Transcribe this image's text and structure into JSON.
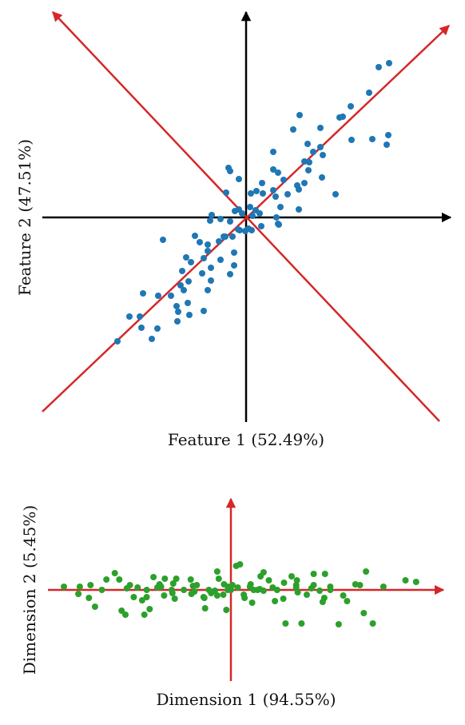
{
  "chart_data": [
    {
      "type": "scatter",
      "title": "",
      "xlabel": "Feature 1 (52.49%)",
      "ylabel": "Feature 2 (47.51%)",
      "grid": false,
      "legend": "none",
      "point_color": "#1f77b4",
      "axis_color": "#000000",
      "component_axis_color": "#d62728",
      "component_axes": [
        "diagonal-ascending",
        "diagonal-descending"
      ],
      "xlim": [
        -2.6,
        2.6
      ],
      "ylim": [
        -2.6,
        2.6
      ],
      "x": [
        1.79,
        1.66,
        1.54,
        1.31,
        1.21,
        1.17,
        0.67,
        0.93,
        0.96,
        0.59,
        0.93,
        1.78,
        1.58,
        0.77,
        1.32,
        0.84,
        0.34,
        0.73,
        0.79,
        1.76,
        0.78,
        0.73,
        0.34,
        0.4,
        0.95,
        0.47,
        1.12,
        -0.22,
        -0.2,
        -0.09,
        0.2,
        0.64,
        0.66,
        0.34,
        0.21,
        0.13,
        0.52,
        0.37,
        0.06,
        0.43,
        0.66,
        0.38,
        0.05,
        0.17,
        -0.25,
        0.12,
        -0.43,
        -0.09,
        -0.05,
        -0.14,
        0.08,
        -0.45,
        -0.32,
        -0.2,
        0.4,
        0.41,
        0.19,
        -0.01,
        0.03,
        0.07,
        -0.08,
        -0.17,
        -0.1,
        -0.28,
        -0.34,
        -0.64,
        -0.48,
        -0.26,
        -0.15,
        -0.58,
        -0.48,
        -0.53,
        -0.32,
        -0.69,
        -0.75,
        -1.04,
        -0.44,
        -0.15,
        -0.55,
        -0.8,
        -0.2,
        -0.72,
        -0.82,
        -0.78,
        -1.29,
        -0.48,
        -0.44,
        -0.94,
        -1.1,
        -0.85,
        -0.73,
        -0.87,
        -0.53,
        -0.86,
        -0.71,
        -1.33,
        -1.11,
        -1.46,
        -1.31,
        -1.18,
        -1.61
      ],
      "y": [
        1.93,
        1.88,
        1.56,
        1.39,
        1.26,
        1.25,
        1.28,
        1.12,
        0.78,
        1.1,
        0.88,
        1.03,
        0.98,
        0.92,
        0.97,
        0.82,
        0.82,
        0.7,
        0.69,
        0.91,
        0.59,
        0.43,
        0.6,
        0.56,
        0.5,
        0.47,
        0.29,
        0.62,
        0.58,
        0.48,
        0.43,
        0.4,
        0.35,
        0.34,
        0.3,
        0.33,
        0.29,
        0.26,
        0.3,
        0.13,
        0.1,
        0.0,
        0.13,
        0.05,
        0.31,
        0.09,
        0.03,
        0.1,
        0.05,
        0.08,
        0.02,
        -0.04,
        -0.02,
        -0.05,
        -0.08,
        -0.09,
        -0.11,
        -0.17,
        -0.14,
        -0.16,
        -0.16,
        -0.24,
        -0.15,
        -0.24,
        -0.3,
        -0.23,
        -0.34,
        -0.24,
        -0.44,
        -0.31,
        -0.42,
        -0.51,
        -0.53,
        -0.56,
        -0.5,
        -0.28,
        -0.63,
        -0.6,
        -0.7,
        -0.67,
        -0.71,
        -0.8,
        -0.85,
        -0.91,
        -0.95,
        -0.91,
        -0.79,
        -0.98,
        -0.98,
        -1.18,
        -1.07,
        -1.11,
        -1.17,
        -1.3,
        -1.22,
        -1.24,
        -1.39,
        -1.24,
        -1.38,
        -1.52,
        -1.55
      ]
    },
    {
      "type": "scatter",
      "title": "",
      "xlabel": "Dimension 1 (94.55%)",
      "ylabel": "Dimension 2 (5.45%)",
      "grid": false,
      "legend": "none",
      "point_color": "#2ca02c",
      "axis_color": "#d62728",
      "xlim": [
        -2.6,
        2.6
      ],
      "ylim": [
        -0.75,
        0.75
      ],
      "x": [
        -2.2,
        -1.99,
        -1.87,
        -1.79,
        -1.53,
        -1.37,
        -1.44,
        -1.39,
        -1.33,
        -1.28,
        -1.17,
        -1.14,
        -1.11,
        -1.02,
        -1.07,
        -0.97,
        -0.87,
        -0.77,
        -0.76,
        -0.72,
        -0.74,
        -0.5,
        -0.52,
        -0.45,
        -0.35,
        -0.29,
        -0.26,
        -0.16,
        -0.18,
        -0.09,
        -0.06,
        -0.04,
        0.02,
        0.07,
        0.12,
        0.17,
        0.25,
        0.3,
        0.35,
        0.39,
        0.43,
        0.5,
        0.58,
        0.61,
        0.7,
        0.72,
        0.8,
        0.86,
        0.93,
        1.0,
        1.06,
        1.09,
        1.17,
        1.24,
        1.31,
        1.42,
        1.53,
        1.64,
        1.7,
        1.75,
        1.87,
        2.01,
        2.3,
        2.44,
        -2.01,
        -1.85,
        -1.64,
        -1.47,
        -1.23,
        -1.11,
        -0.94,
        -0.88,
        -0.53,
        -0.36,
        -0.21,
        0.0,
        0.09,
        0.18,
        0.26,
        0.38,
        0.55,
        0.69,
        0.86,
        1.09,
        1.21,
        1.31,
        1.48,
        1.78,
        -0.34,
        -0.18,
        0.28,
        0.87,
        -0.92,
        -0.78,
        -0.48,
        -0.04,
        0.43,
        0.88,
        1.23,
        -1.7,
        -0.62,
        -0.1
      ],
      "y": [
        0.04,
        0.04,
        -0.1,
        -0.21,
        0.21,
        0.02,
        -0.26,
        -0.31,
        0.06,
        -0.09,
        -0.13,
        -0.31,
        0.0,
        0.16,
        -0.24,
        0.03,
        0.14,
        -0.04,
        0.08,
        0.14,
        -0.11,
        0.05,
        -0.05,
        0.06,
        -0.1,
        0.0,
        -0.04,
        0.14,
        -0.07,
        0.07,
        -0.25,
        0.0,
        0.06,
        0.3,
        0.32,
        -0.06,
        0.04,
        0.0,
        0.0,
        0.17,
        0.22,
        0.12,
        -0.14,
        0.0,
        0.09,
        -0.42,
        0.17,
        0.06,
        -0.42,
        -0.06,
        0.02,
        0.2,
        -0.01,
        0.2,
        0.0,
        -0.43,
        -0.14,
        0.07,
        0.06,
        -0.29,
        -0.42,
        0.04,
        0.12,
        0.1,
        -0.05,
        0.06,
        0.13,
        0.13,
        0.03,
        -0.09,
        0.07,
        -0.07,
        0.13,
        -0.09,
        -0.01,
        0.0,
        0.03,
        -0.1,
        0.07,
        0.01,
        0.03,
        -0.11,
        0.03,
        0.06,
        -0.15,
        0.04,
        -0.07,
        0.23,
        -0.23,
        0.23,
        -0.16,
        0.12,
        0.04,
        0.0,
        -0.02,
        0.04,
        -0.01,
        -0.03,
        -0.1,
        0.0,
        0.0,
        -0.06
      ]
    }
  ]
}
